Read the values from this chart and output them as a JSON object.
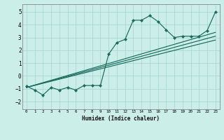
{
  "xlabel": "Humidex (Indice chaleur)",
  "bg_color": "#cceee8",
  "line_color": "#1a6b5e",
  "grid_color": "#aad8d3",
  "xlim": [
    -0.5,
    23.5
  ],
  "ylim": [
    -2.6,
    5.6
  ],
  "xticks": [
    0,
    1,
    2,
    3,
    4,
    5,
    6,
    7,
    8,
    9,
    10,
    11,
    12,
    13,
    14,
    15,
    16,
    17,
    18,
    19,
    20,
    21,
    22,
    23
  ],
  "yticks": [
    -2,
    -1,
    0,
    1,
    2,
    3,
    4,
    5
  ],
  "main_x": [
    0,
    1,
    2,
    3,
    4,
    5,
    6,
    7,
    8,
    9,
    10,
    11,
    12,
    13,
    14,
    15,
    16,
    17,
    18,
    19,
    20,
    21,
    22,
    23
  ],
  "main_y": [
    -0.8,
    -1.1,
    -1.5,
    -0.9,
    -1.1,
    -0.9,
    -1.1,
    -0.75,
    -0.75,
    -0.75,
    1.7,
    2.6,
    2.85,
    4.35,
    4.35,
    4.7,
    4.25,
    3.6,
    3.0,
    3.1,
    3.1,
    3.1,
    3.55,
    5.0
  ],
  "line1_x": [
    0,
    23
  ],
  "line1_y": [
    -0.9,
    3.1
  ],
  "line2_x": [
    0,
    23
  ],
  "line2_y": [
    -0.9,
    3.4
  ],
  "line3_x": [
    0,
    23
  ],
  "line3_y": [
    -0.9,
    2.8
  ]
}
